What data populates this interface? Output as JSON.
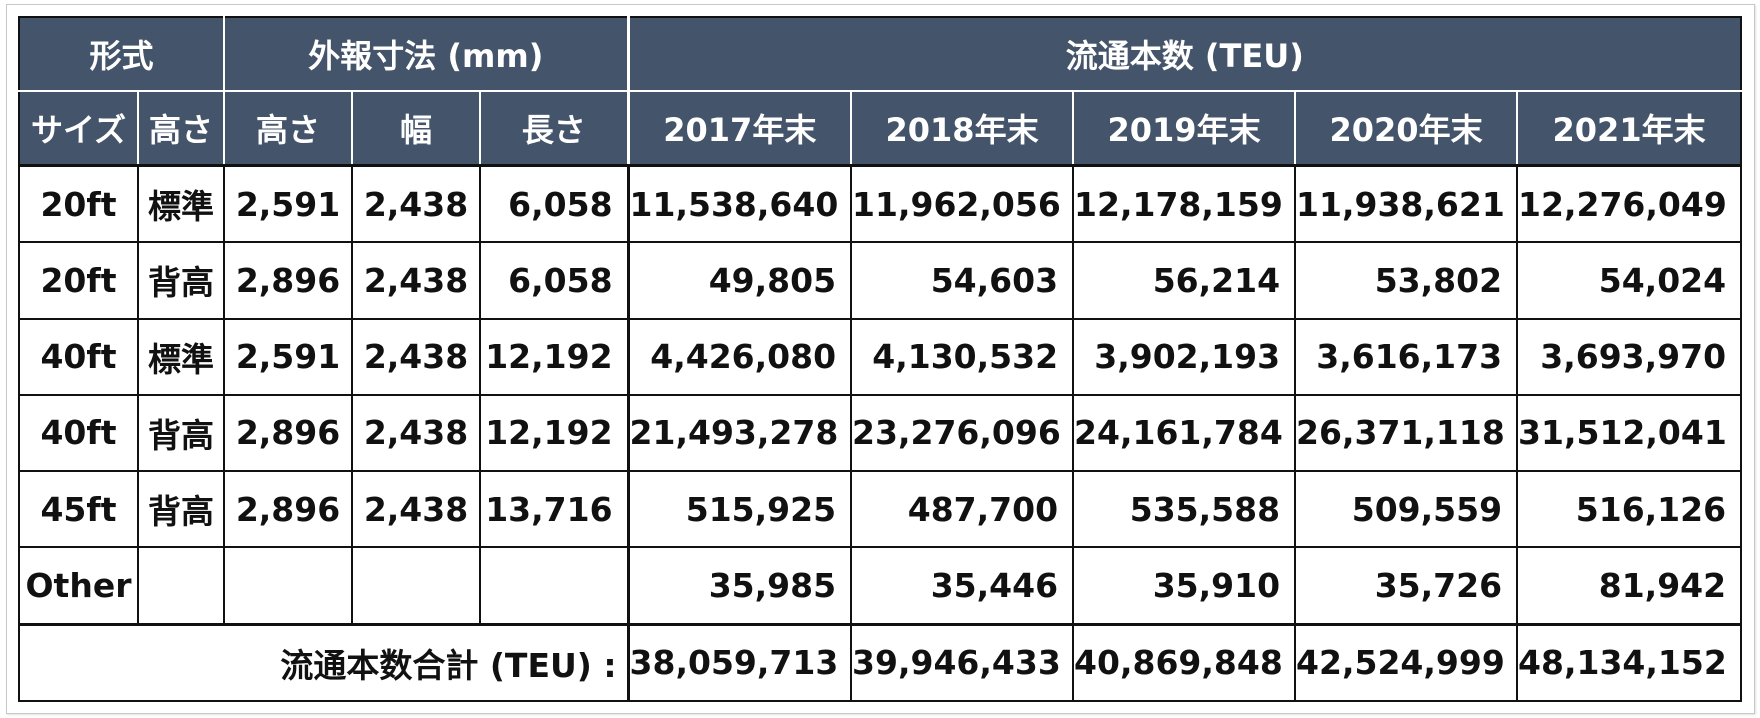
{
  "header": {
    "group_type": "形式",
    "group_dims": "外報寸法 (mm)",
    "group_circ": "流通本数 (TEU)",
    "col_size": "サイズ",
    "col_height": "高さ",
    "col_dim_height": "高さ",
    "col_dim_width": "幅",
    "col_dim_length": "長さ",
    "years": [
      "2017年末",
      "2018年末",
      "2019年末",
      "2020年末",
      "2021年末"
    ]
  },
  "rows": [
    {
      "size": "20ft",
      "height": "標準",
      "h": "2,591",
      "w": "2,438",
      "l": "6,058",
      "v": [
        "11,538,640",
        "11,962,056",
        "12,178,159",
        "11,938,621",
        "12,276,049"
      ]
    },
    {
      "size": "20ft",
      "height": "背高",
      "h": "2,896",
      "w": "2,438",
      "l": "6,058",
      "v": [
        "49,805",
        "54,603",
        "56,214",
        "53,802",
        "54,024"
      ]
    },
    {
      "size": "40ft",
      "height": "標準",
      "h": "2,591",
      "w": "2,438",
      "l": "12,192",
      "v": [
        "4,426,080",
        "4,130,532",
        "3,902,193",
        "3,616,173",
        "3,693,970"
      ]
    },
    {
      "size": "40ft",
      "height": "背高",
      "h": "2,896",
      "w": "2,438",
      "l": "12,192",
      "v": [
        "21,493,278",
        "23,276,096",
        "24,161,784",
        "26,371,118",
        "31,512,041"
      ]
    },
    {
      "size": "45ft",
      "height": "背高",
      "h": "2,896",
      "w": "2,438",
      "l": "13,716",
      "v": [
        "515,925",
        "487,700",
        "535,588",
        "509,559",
        "516,126"
      ]
    },
    {
      "size": "Other",
      "height": "",
      "h": "",
      "w": "",
      "l": "",
      "v": [
        "35,985",
        "35,446",
        "35,910",
        "35,726",
        "81,942"
      ]
    }
  ],
  "total": {
    "label": "流通本数合計 (TEU) :",
    "v": [
      "38,059,713",
      "39,946,433",
      "40,869,848",
      "42,524,999",
      "48,134,152"
    ]
  },
  "colors": {
    "header_bg": "#44546a",
    "header_text": "#ffffff",
    "border": "#111111"
  }
}
